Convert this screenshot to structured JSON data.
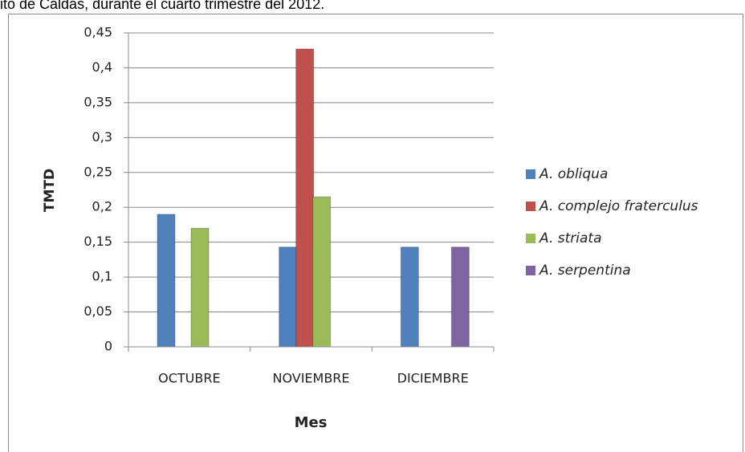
{
  "caption": "ito de Caldas, durante el cuarto trimestre del 2012.",
  "chart_data": {
    "type": "bar",
    "categories": [
      "OCTUBRE",
      "NOVIEMBRE",
      "DICIEMBRE"
    ],
    "series": [
      {
        "name": "A. obliqua",
        "color": "#4f81bd",
        "values": [
          0.19,
          0.143,
          0.143
        ]
      },
      {
        "name": "A. complejo fraterculus",
        "color": "#c0504d",
        "values": [
          null,
          0.427,
          null
        ]
      },
      {
        "name": "A. striata",
        "color": "#9bbb59",
        "values": [
          0.17,
          0.215,
          null
        ]
      },
      {
        "name": "A. serpentina",
        "color": "#8064a2",
        "values": [
          null,
          null,
          0.143
        ]
      }
    ],
    "x_label": "Mes",
    "y_label": "TMTD",
    "ylim": [
      0,
      0.45
    ],
    "yticks": [
      0,
      {
        "value": 0.05,
        "label": "0,05"
      },
      {
        "value": 0.1,
        "label": "0,1"
      },
      {
        "value": 0.15,
        "label": "0,15"
      },
      {
        "value": 0.2,
        "label": "0,2"
      },
      {
        "value": 0.25,
        "label": "0,25"
      },
      {
        "value": 0.3,
        "label": "0,3"
      },
      {
        "value": 0.35,
        "label": "0,35"
      },
      {
        "value": 0.4,
        "label": "0,4"
      },
      {
        "value": 0.45,
        "label": "0,45"
      }
    ],
    "grid": true,
    "legend": "right"
  }
}
